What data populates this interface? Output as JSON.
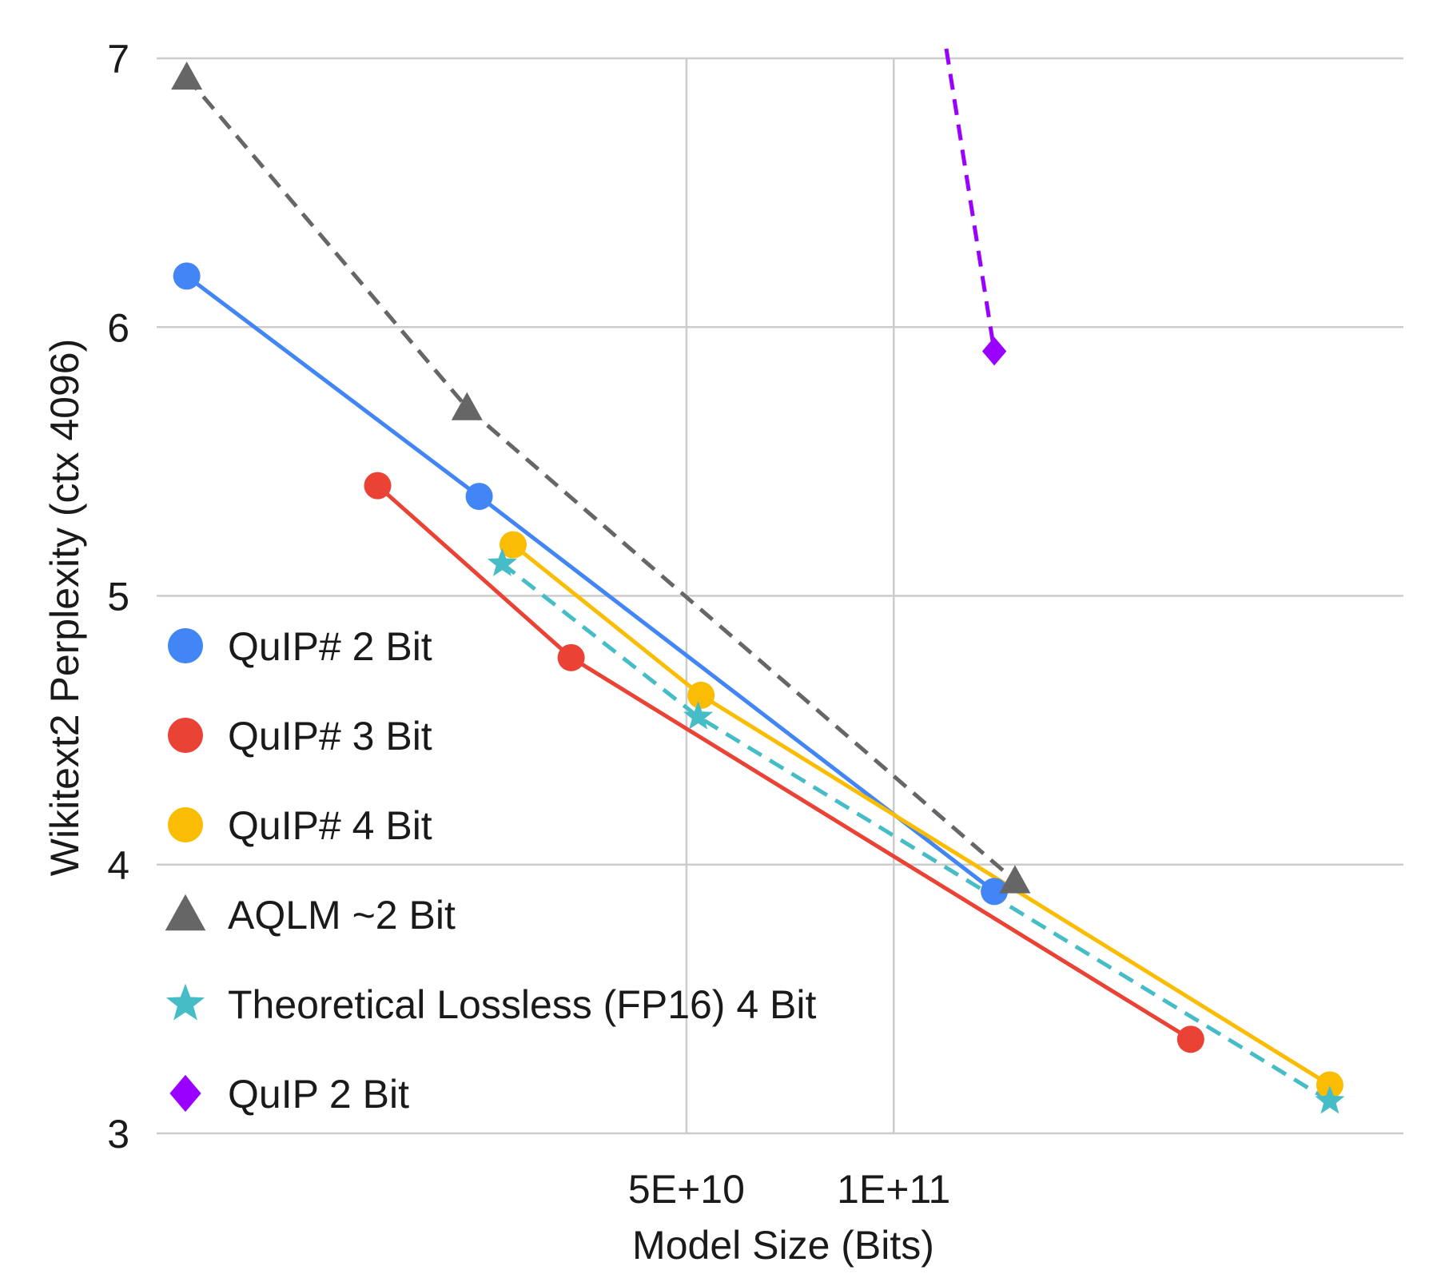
{
  "chart_data": {
    "type": "line",
    "title": "",
    "xlabel": "Model Size (Bits)",
    "ylabel": "Wikitext2 Perplexity (ctx 4096)",
    "xscale": "log",
    "xlim": [
      8500000000,
      550000000000
    ],
    "ylim": [
      3,
      7
    ],
    "x_ticks": [
      {
        "value": 50000000000,
        "label": "5E+10"
      },
      {
        "value": 100000000000,
        "label": "1E+11"
      }
    ],
    "y_ticks": [
      {
        "value": 3,
        "label": "3"
      },
      {
        "value": 4,
        "label": "4"
      },
      {
        "value": 5,
        "label": "5"
      },
      {
        "value": 6,
        "label": "6"
      },
      {
        "value": 7,
        "label": "7"
      }
    ],
    "grid": true,
    "legend_position": "left",
    "series": [
      {
        "name": "QuIP# 2 Bit",
        "color": "#4285f4",
        "marker": "circle",
        "dash": false,
        "points": [
          [
            9400000000,
            6.19
          ],
          [
            25000000000,
            5.37
          ],
          [
            140000000000,
            3.9
          ]
        ]
      },
      {
        "name": "QuIP# 3 Bit",
        "color": "#ea4335",
        "marker": "circle",
        "dash": false,
        "points": [
          [
            17800000000,
            5.41
          ],
          [
            34000000000,
            4.77
          ],
          [
            270000000000,
            3.35
          ]
        ]
      },
      {
        "name": "QuIP# 4 Bit",
        "color": "#fbbc04",
        "marker": "circle",
        "dash": false,
        "points": [
          [
            28000000000,
            5.19
          ],
          [
            52500000000,
            4.63
          ],
          [
            430000000000,
            3.18
          ]
        ]
      },
      {
        "name": "AQLM ~2 Bit",
        "color": "#666666",
        "marker": "triangle",
        "dash": true,
        "points": [
          [
            9400000000,
            6.93
          ],
          [
            24000000000,
            5.7
          ],
          [
            150000000000,
            3.94
          ]
        ]
      },
      {
        "name": "Theoretical Lossless (FP16) 4 Bit",
        "color": "#46bdc6",
        "marker": "star",
        "dash": true,
        "points": [
          [
            27000000000,
            5.12
          ],
          [
            52000000000,
            4.55
          ],
          [
            430000000000,
            3.12
          ]
        ]
      },
      {
        "name": "QuIP 2 Bit",
        "color": "#9900ff",
        "marker": "diamond",
        "dash": true,
        "points": [
          [
            110000000000,
            7.6
          ],
          [
            140000000000,
            5.91
          ]
        ]
      }
    ]
  }
}
